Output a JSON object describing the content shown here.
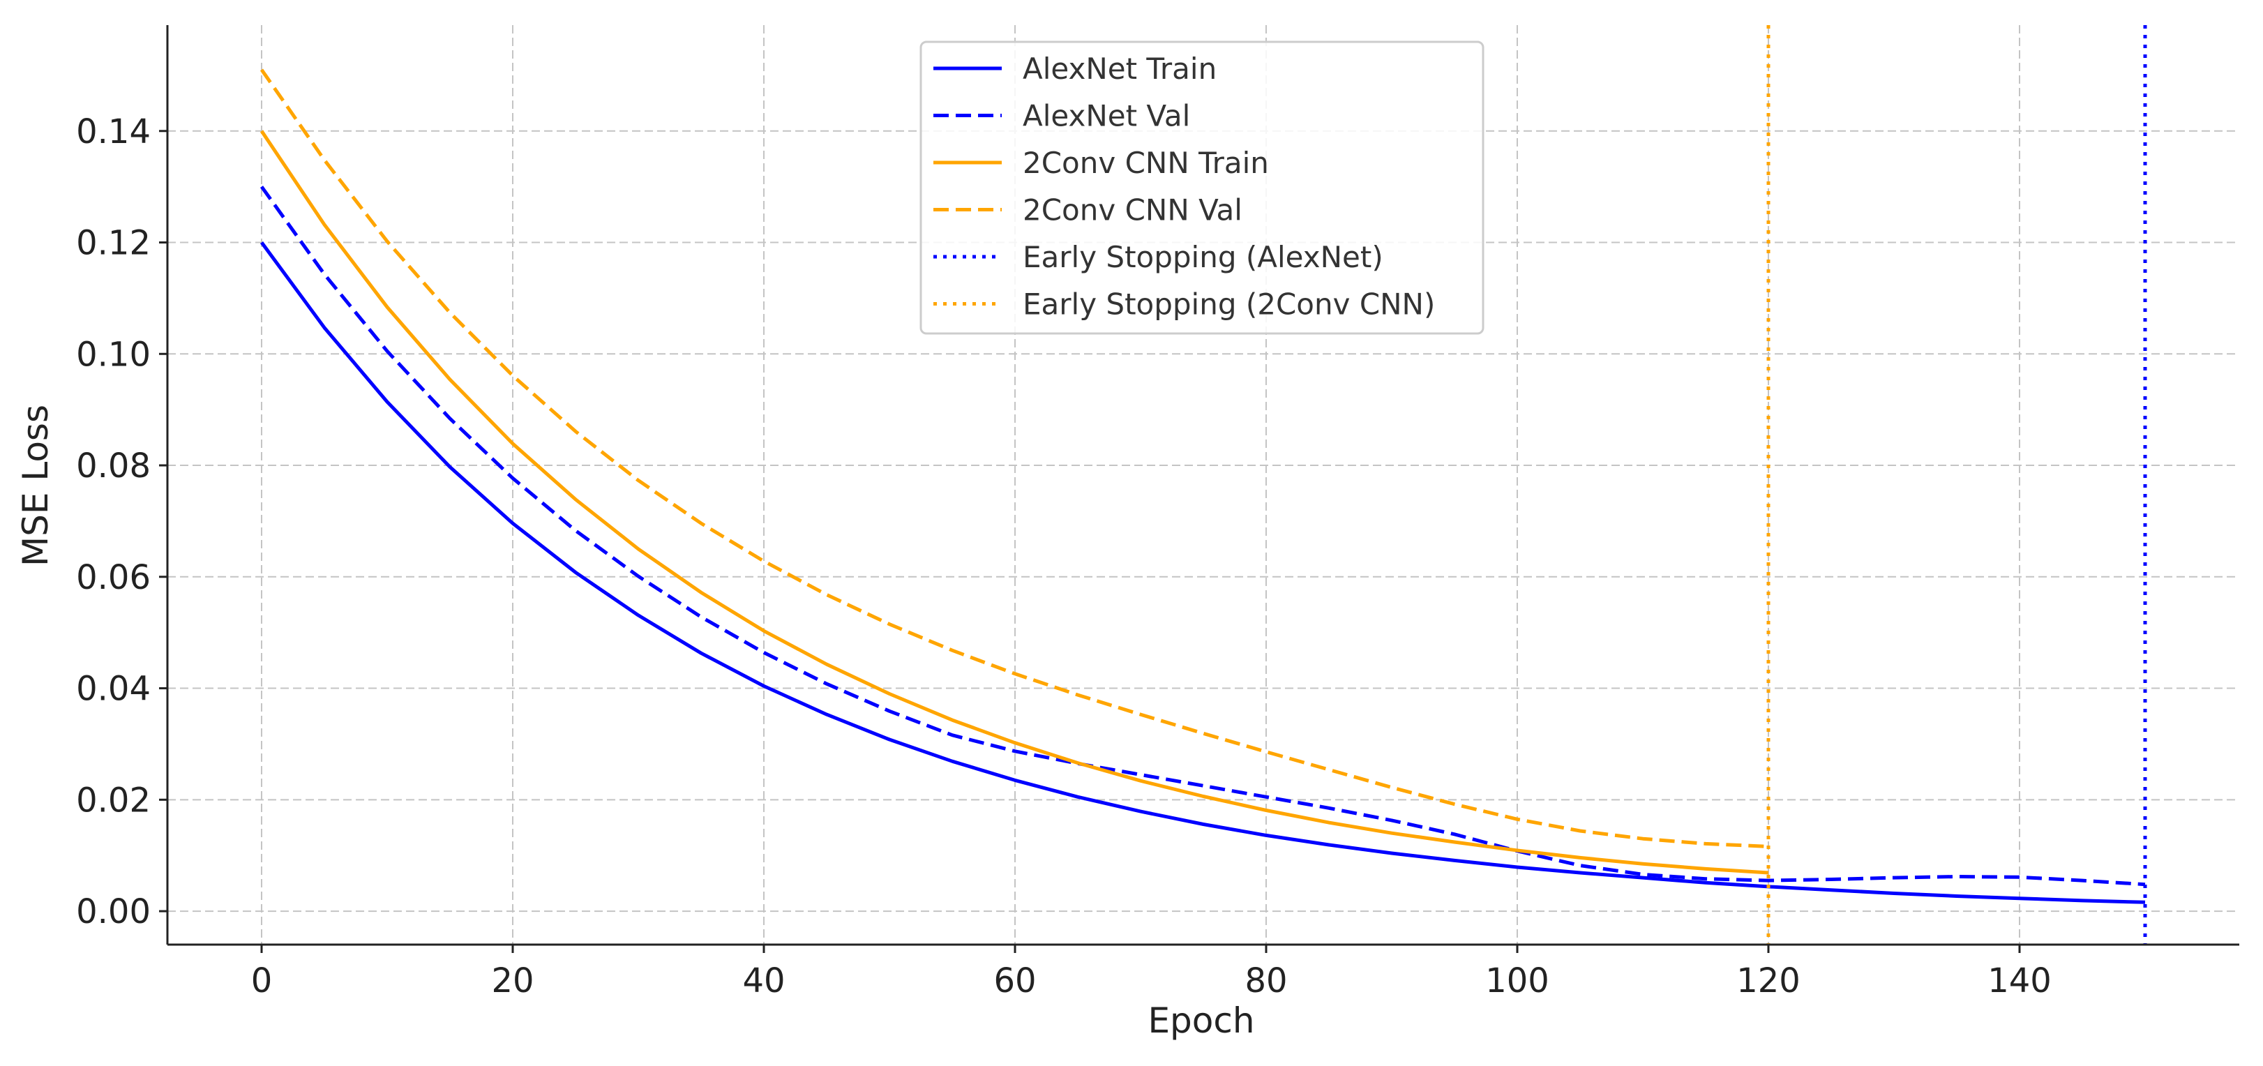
{
  "chart_data": {
    "type": "line",
    "title": "",
    "xlabel": "Epoch",
    "ylabel": "MSE Loss",
    "xlim": [
      -7.5,
      157.5
    ],
    "ylim": [
      -0.006,
      0.159
    ],
    "xticks": [
      0,
      20,
      40,
      60,
      80,
      100,
      120,
      140
    ],
    "xtick_labels": [
      "0",
      "20",
      "40",
      "60",
      "80",
      "100",
      "120",
      "140"
    ],
    "yticks": [
      0.0,
      0.02,
      0.04,
      0.06,
      0.08,
      0.1,
      0.12,
      0.14
    ],
    "ytick_labels": [
      "0.00",
      "0.02",
      "0.04",
      "0.06",
      "0.08",
      "0.10",
      "0.12",
      "0.14"
    ],
    "grid": true,
    "legend_position": "top-center",
    "series": [
      {
        "name": "AlexNet Train",
        "color": "#0000ff",
        "style": "solid",
        "x": [
          0,
          5,
          10,
          15,
          20,
          25,
          30,
          35,
          40,
          45,
          50,
          55,
          60,
          65,
          70,
          75,
          80,
          85,
          90,
          95,
          100,
          105,
          110,
          115,
          120,
          125,
          130,
          135,
          140,
          145,
          150
        ],
        "y": [
          0.12,
          0.1047,
          0.0914,
          0.0797,
          0.0696,
          0.0608,
          0.0531,
          0.0463,
          0.0404,
          0.0353,
          0.0308,
          0.0269,
          0.0235,
          0.0205,
          0.0179,
          0.0156,
          0.0136,
          0.0119,
          0.0104,
          0.0091,
          0.0079,
          0.0069,
          0.006,
          0.0051,
          0.0044,
          0.0038,
          0.0032,
          0.0027,
          0.0023,
          0.0019,
          0.0016
        ]
      },
      {
        "name": "AlexNet Val",
        "color": "#0000ff",
        "style": "dashed",
        "x": [
          0,
          5,
          10,
          15,
          20,
          25,
          30,
          35,
          40,
          45,
          50,
          55,
          60,
          65,
          70,
          75,
          80,
          85,
          90,
          95,
          100,
          105,
          110,
          115,
          120,
          125,
          130,
          135,
          140,
          145,
          150
        ],
        "y": [
          0.13,
          0.1143,
          0.1005,
          0.0884,
          0.0777,
          0.0683,
          0.0601,
          0.0528,
          0.0464,
          0.0408,
          0.0359,
          0.0316,
          0.0287,
          0.0265,
          0.0245,
          0.0225,
          0.0205,
          0.0185,
          0.0163,
          0.0138,
          0.0108,
          0.0082,
          0.0066,
          0.0058,
          0.0055,
          0.0057,
          0.006,
          0.0062,
          0.0061,
          0.0055,
          0.0048
        ]
      },
      {
        "name": "2Conv CNN Train",
        "color": "#ffa500",
        "style": "solid",
        "x": [
          0,
          5,
          10,
          15,
          20,
          25,
          30,
          35,
          40,
          45,
          50,
          55,
          60,
          65,
          70,
          75,
          80,
          85,
          90,
          95,
          100,
          105,
          110,
          115,
          120
        ],
        "y": [
          0.14,
          0.1232,
          0.1084,
          0.0954,
          0.0839,
          0.0739,
          0.065,
          0.0572,
          0.0503,
          0.0443,
          0.039,
          0.0343,
          0.0302,
          0.0266,
          0.0234,
          0.0206,
          0.0181,
          0.0159,
          0.014,
          0.0124,
          0.0109,
          0.0096,
          0.0085,
          0.0076,
          0.0069
        ]
      },
      {
        "name": "2Conv CNN Val",
        "color": "#ffa500",
        "style": "dashed",
        "x": [
          0,
          5,
          10,
          15,
          20,
          25,
          30,
          35,
          40,
          45,
          50,
          55,
          60,
          65,
          70,
          75,
          80,
          85,
          90,
          95,
          100,
          105,
          110,
          115,
          120
        ],
        "y": [
          0.151,
          0.1348,
          0.1202,
          0.1074,
          0.0961,
          0.0861,
          0.0773,
          0.0696,
          0.0628,
          0.0568,
          0.0515,
          0.0468,
          0.0426,
          0.0388,
          0.0353,
          0.0319,
          0.0286,
          0.0254,
          0.0222,
          0.0192,
          0.0165,
          0.0144,
          0.013,
          0.0121,
          0.0116
        ]
      },
      {
        "name": "Early Stopping (AlexNet)",
        "color": "#0000ff",
        "style": "dotted",
        "vline_x": 150
      },
      {
        "name": "Early Stopping (2Conv CNN)",
        "color": "#ffa500",
        "style": "dotted",
        "vline_x": 120
      }
    ]
  }
}
